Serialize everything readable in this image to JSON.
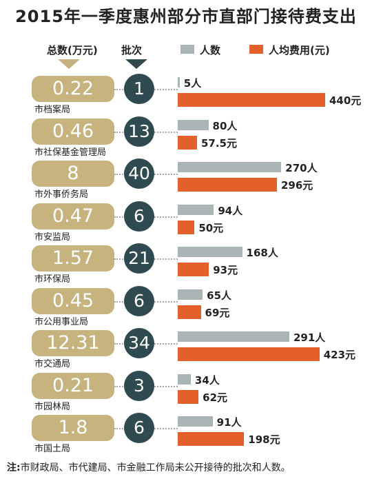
{
  "title": "2015年一季度惠州部分市直部门接待费支出",
  "headers": {
    "total": "总数(万元)",
    "batches": "批次",
    "legend_people": "人数",
    "legend_cost": "人均费用(元)"
  },
  "colors": {
    "total_box": "#c7b37e",
    "batch_circle": "#2f4a50",
    "people_bar": "#a8b4b6",
    "cost_bar": "#e4602a"
  },
  "chart_data": {
    "type": "bar",
    "orientation": "horizontal",
    "categories": [
      "市档案局",
      "市社保基金管理局",
      "市外事侨务局",
      "市安监局",
      "市环保局",
      "市公用事业局",
      "市交通局",
      "市园林局",
      "市国土局"
    ],
    "total_wan_yuan": [
      "0.22",
      "0.46",
      "8",
      "0.47",
      "1.57",
      "0.45",
      "12.31",
      "0.21",
      "1.8"
    ],
    "batches": [
      "1",
      "13",
      "40",
      "6",
      "21",
      "6",
      "34",
      "3",
      "6"
    ],
    "series": [
      {
        "name": "人数",
        "values": [
          5,
          80,
          270,
          94,
          168,
          65,
          291,
          34,
          91
        ],
        "labels": [
          "5人",
          "80人",
          "270人",
          "94人",
          "168人",
          "65人",
          "291人",
          "34人",
          "91人"
        ]
      },
      {
        "name": "人均费用(元)",
        "values": [
          440,
          57.5,
          296,
          50,
          93,
          69,
          423,
          62,
          198
        ],
        "labels": [
          "440元",
          "57.5元",
          "296元",
          "50元",
          "93元",
          "69元",
          "423元",
          "62元",
          "198元"
        ]
      }
    ]
  },
  "note": {
    "prefix": "注:",
    "text": "市财政局、市代建局、市金融工作局未公开接待的批次和人数。"
  }
}
